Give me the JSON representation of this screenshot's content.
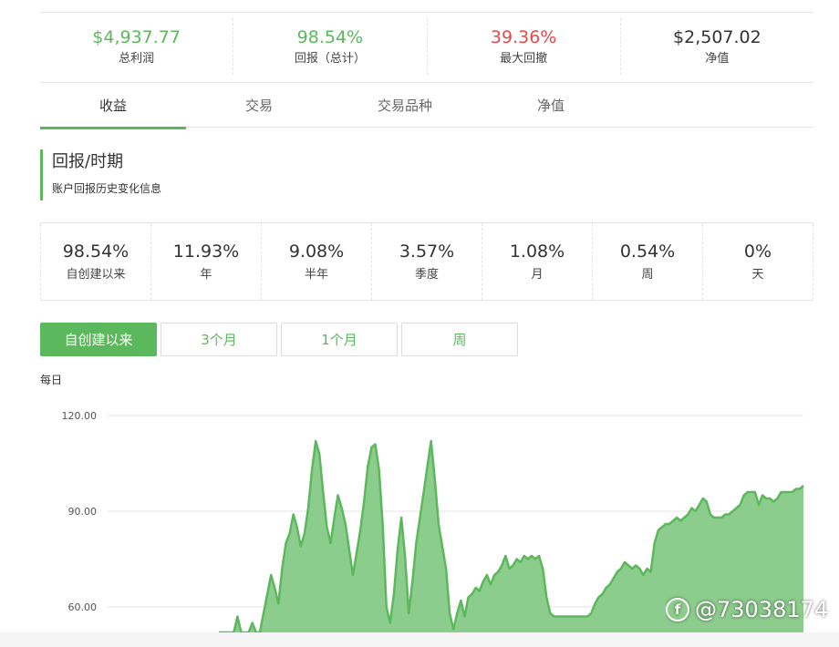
{
  "summary": [
    {
      "value": "$4,937.77",
      "label": "总利润",
      "color": "#5cb85c"
    },
    {
      "value": "98.54%",
      "label": "回报（总计）",
      "color": "#5cb85c"
    },
    {
      "value": "39.36%",
      "label": "最大回撤",
      "color": "#e04a4a"
    },
    {
      "value": "$2,507.02",
      "label": "净值",
      "color": "#333333"
    }
  ],
  "tabs": [
    "收益",
    "交易",
    "交易品种",
    "净值"
  ],
  "active_tab": "收益",
  "section": {
    "title": "回报/时期",
    "subtitle": "账户回报历史变化信息"
  },
  "periods": [
    {
      "value": "98.54%",
      "label": "自创建以来"
    },
    {
      "value": "11.93%",
      "label": "年"
    },
    {
      "value": "9.08%",
      "label": "半年"
    },
    {
      "value": "3.57%",
      "label": "季度"
    },
    {
      "value": "1.08%",
      "label": "月"
    },
    {
      "value": "0.54%",
      "label": "周"
    },
    {
      "value": "0%",
      "label": "天"
    }
  ],
  "range_buttons": [
    "自创建以来",
    "3个月",
    "1个月",
    "周"
  ],
  "active_range": "自创建以来",
  "chart_caption": "每日",
  "chart_data": {
    "type": "area",
    "title": "",
    "xlabel": "",
    "ylabel": "",
    "ylim": [
      52,
      120
    ],
    "yticks": [
      "120.00",
      "90.00",
      "60.00"
    ],
    "grid": true,
    "color": "#5cb85c",
    "fill": "#8ccc8c",
    "series": [
      {
        "values": [
          52,
          52,
          52,
          52,
          52,
          57,
          52,
          52,
          52,
          55,
          52,
          52,
          58,
          64,
          70,
          66,
          61,
          72,
          80,
          83,
          89,
          85,
          79,
          83,
          91,
          103,
          112,
          108,
          96,
          85,
          80,
          88,
          95,
          91,
          86,
          78,
          70,
          77,
          84,
          93,
          104,
          110,
          111,
          103,
          86,
          60,
          55,
          64,
          78,
          88,
          76,
          58,
          68,
          80,
          88,
          96,
          104,
          112,
          100,
          86,
          79,
          72,
          58,
          53,
          58,
          62,
          57,
          63,
          64,
          66,
          65,
          68,
          70,
          67,
          70,
          71,
          73,
          76,
          72,
          73,
          75,
          74,
          76,
          75,
          76,
          75,
          76,
          72,
          63,
          58,
          57,
          57,
          57,
          57,
          57,
          57,
          57,
          57,
          57,
          57,
          58,
          61,
          63,
          64,
          66,
          67,
          69,
          71,
          72,
          74,
          73,
          72,
          73,
          72,
          70,
          72,
          71,
          80,
          84,
          85,
          86,
          86,
          87,
          88,
          87,
          88,
          89,
          91,
          90,
          92,
          94,
          93,
          89,
          88,
          88,
          88,
          89,
          89,
          90,
          91,
          92,
          95,
          96,
          96,
          96,
          92,
          95,
          94,
          94,
          93,
          94,
          96,
          96,
          96,
          96,
          97,
          97,
          98
        ]
      }
    ]
  },
  "watermark": "@73038174"
}
